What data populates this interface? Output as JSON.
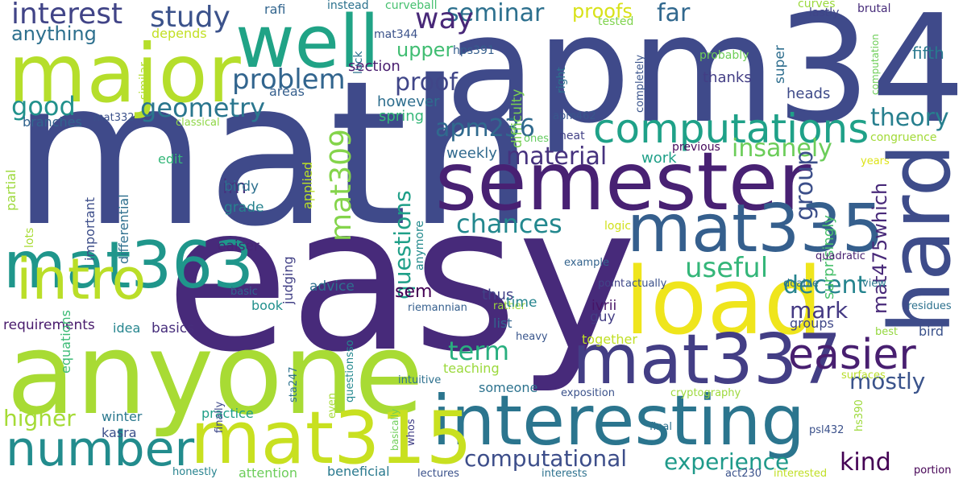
{
  "words": [
    {
      "text": "math",
      "color": "#3f4a8a"
    },
    {
      "text": "easy",
      "color": "#472a7a"
    },
    {
      "text": "apm346",
      "color": "#3f4a8a"
    },
    {
      "text": "anyone",
      "color": "#a8db34"
    },
    {
      "text": "semester",
      "color": "#482173"
    },
    {
      "text": "interesting",
      "color": "#2b758e"
    },
    {
      "text": "major",
      "color": "#b5de2b"
    },
    {
      "text": "well",
      "color": "#20a386"
    },
    {
      "text": "hard",
      "color": "#3e4c8a"
    },
    {
      "text": "load",
      "color": "#efe51c"
    },
    {
      "text": "mat335",
      "color": "#355f8d"
    },
    {
      "text": "mat363",
      "color": "#1f968b"
    },
    {
      "text": "mat337",
      "color": "#433e85"
    },
    {
      "text": "mat315",
      "color": "#c8e020"
    },
    {
      "text": "intro",
      "color": "#bade28"
    },
    {
      "text": "number",
      "color": "#228c8d"
    },
    {
      "text": "computations",
      "color": "#1fa188"
    },
    {
      "text": "easier",
      "color": "#481f70"
    },
    {
      "text": "interest",
      "color": "#414487"
    },
    {
      "text": "study",
      "color": "#3b528b"
    },
    {
      "text": "problem",
      "color": "#32658e"
    },
    {
      "text": "geometry",
      "color": "#2a768e"
    },
    {
      "text": "good",
      "color": "#21918c"
    },
    {
      "text": "apm236",
      "color": "#306a8e"
    },
    {
      "text": "seminar",
      "color": "#2d708e"
    },
    {
      "text": "way",
      "color": "#482878"
    },
    {
      "text": "proofs",
      "color": "#d8e219"
    },
    {
      "text": "far",
      "color": "#31688e"
    },
    {
      "text": "proof",
      "color": "#404688"
    },
    {
      "text": "anything",
      "color": "#2d708e"
    },
    {
      "text": "upper",
      "color": "#40bd72"
    },
    {
      "text": "theory",
      "color": "#277f8e"
    },
    {
      "text": "material",
      "color": "#46327e"
    },
    {
      "text": "insanely",
      "color": "#6ccd5a"
    },
    {
      "text": "mat309",
      "color": "#84d44b"
    },
    {
      "text": "questions",
      "color": "#1f9f88"
    },
    {
      "text": "chances",
      "color": "#23888e"
    },
    {
      "text": "useful",
      "color": "#34b679"
    },
    {
      "text": "group",
      "color": "#3c4f8a"
    },
    {
      "text": "decent",
      "color": "#25848e"
    },
    {
      "text": "mark",
      "color": "#443983"
    },
    {
      "text": "mat475which",
      "color": "#482979"
    },
    {
      "text": "im",
      "color": "#46337e"
    },
    {
      "text": "term",
      "color": "#29af7f"
    },
    {
      "text": "mostly",
      "color": "#3a538b"
    },
    {
      "text": "experience",
      "color": "#1f9a8a"
    },
    {
      "text": "kind",
      "color": "#440154"
    },
    {
      "text": "computational",
      "color": "#3d4e8a"
    },
    {
      "text": "higher",
      "color": "#a5db36"
    },
    {
      "text": "sem",
      "color": "#440154"
    },
    {
      "text": "surprisingly",
      "color": "#4ac16d"
    },
    {
      "text": "section",
      "color": "#481d6f"
    },
    {
      "text": "however",
      "color": "#2e6e8e"
    },
    {
      "text": "spring",
      "color": "#35b779"
    },
    {
      "text": "difficulty",
      "color": "#7ad151"
    },
    {
      "text": "thanks",
      "color": "#433e85"
    },
    {
      "text": "heads",
      "color": "#3e4a89"
    },
    {
      "text": "super",
      "color": "#2e6e8e"
    },
    {
      "text": "fifth",
      "color": "#29798e"
    },
    {
      "text": "rafi",
      "color": "#32658e"
    },
    {
      "text": "instead",
      "color": "#2c728e"
    },
    {
      "text": "curveball",
      "color": "#46c06f"
    },
    {
      "text": "tested",
      "color": "#7fd34e"
    },
    {
      "text": "curves",
      "color": "#9bd93c"
    },
    {
      "text": "lastly",
      "color": "#404588"
    },
    {
      "text": "brutal",
      "color": "#472c7a"
    },
    {
      "text": "mat344",
      "color": "#3b528b"
    },
    {
      "text": "hps391",
      "color": "#355e8d"
    },
    {
      "text": "luck",
      "color": "#2c738e"
    },
    {
      "text": "depends",
      "color": "#c2df23"
    },
    {
      "text": "similar",
      "color": "#b2dd2d"
    },
    {
      "text": "probably",
      "color": "#6ece58"
    },
    {
      "text": "right",
      "color": "#2d718e"
    },
    {
      "text": "completely",
      "color": "#3a548c"
    },
    {
      "text": "computation",
      "color": "#6ece58"
    },
    {
      "text": "areas",
      "color": "#355f8d"
    },
    {
      "text": "branches",
      "color": "#32648e"
    },
    {
      "text": "mat332",
      "color": "#3b518b"
    },
    {
      "text": "classical",
      "color": "#8ed645"
    },
    {
      "text": "apm462",
      "color": "#39568c"
    },
    {
      "text": "neat",
      "color": "#424186"
    },
    {
      "text": "ones",
      "color": "#63cb5f"
    },
    {
      "text": "previous",
      "color": "#460a5d"
    },
    {
      "text": "congruence",
      "color": "#a2da37"
    },
    {
      "text": "weekly",
      "color": "#30698e"
    },
    {
      "text": "work",
      "color": "#1fa088"
    },
    {
      "text": "edit",
      "color": "#35b779"
    },
    {
      "text": "birdy",
      "color": "#2d708e"
    },
    {
      "text": "grade",
      "color": "#26828e"
    },
    {
      "text": "eaiser",
      "color": "#482475"
    },
    {
      "text": "applied",
      "color": "#bade28"
    },
    {
      "text": "differential",
      "color": "#2e6f8e"
    },
    {
      "text": "important",
      "color": "#3d4e8a"
    },
    {
      "text": "partial",
      "color": "#9dd93b"
    },
    {
      "text": "lots",
      "color": "#a8db34"
    },
    {
      "text": "years",
      "color": "#dde318"
    },
    {
      "text": "logic",
      "color": "#d0e11c"
    },
    {
      "text": "example",
      "color": "#33638d"
    },
    {
      "text": "quadratic",
      "color": "#482071"
    },
    {
      "text": "anymore",
      "color": "#238a8d"
    },
    {
      "text": "actually",
      "color": "#3b518b"
    },
    {
      "text": "doable",
      "color": "#2d718e"
    },
    {
      "text": "basic",
      "color": "#32648e"
    },
    {
      "text": "advice",
      "color": "#2d708e"
    },
    {
      "text": "judging",
      "color": "#424186"
    },
    {
      "text": "thus",
      "color": "#414287"
    },
    {
      "text": "rather",
      "color": "#9dd93b"
    },
    {
      "text": "point",
      "color": "#414487"
    },
    {
      "text": "view",
      "color": "#2a788e"
    },
    {
      "text": "riemannian",
      "color": "#355f8d"
    },
    {
      "text": "time",
      "color": "#25848e"
    },
    {
      "text": "ivrii",
      "color": "#471365"
    },
    {
      "text": "residues",
      "color": "#2d718e"
    },
    {
      "text": "requirements",
      "color": "#481a6c"
    },
    {
      "text": "idea",
      "color": "#25858e"
    },
    {
      "text": "basics",
      "color": "#472e7c"
    },
    {
      "text": "book",
      "color": "#21908d"
    },
    {
      "text": "list",
      "color": "#32648e"
    },
    {
      "text": "guy",
      "color": "#433d84"
    },
    {
      "text": "groups",
      "color": "#3f4788"
    },
    {
      "text": "bird",
      "color": "#3b528b"
    },
    {
      "text": "best",
      "color": "#95d840"
    },
    {
      "text": "heavy",
      "color": "#39568c"
    },
    {
      "text": "together",
      "color": "#c0df25"
    },
    {
      "text": "teaching",
      "color": "#9bd93c"
    },
    {
      "text": "equations",
      "color": "#3cbb75"
    },
    {
      "text": "intuitive",
      "color": "#2d708e"
    },
    {
      "text": "someone",
      "color": "#2c728e"
    },
    {
      "text": "winter",
      "color": "#2a788e"
    },
    {
      "text": "kasra",
      "color": "#3c508b"
    },
    {
      "text": "practice",
      "color": "#1f9f88"
    },
    {
      "text": "sta247",
      "color": "#2c718e"
    },
    {
      "text": "questionsso",
      "color": "#23888e"
    },
    {
      "text": "finally",
      "color": "#3e4989"
    },
    {
      "text": "even",
      "color": "#a5db36"
    },
    {
      "text": "surfaces",
      "color": "#b8de29"
    },
    {
      "text": "exposition",
      "color": "#3b528b"
    },
    {
      "text": "cryptography",
      "color": "#9dd93b"
    },
    {
      "text": "hs390",
      "color": "#9dd93b"
    },
    {
      "text": "whos",
      "color": "#424086"
    },
    {
      "text": "final",
      "color": "#2d718e"
    },
    {
      "text": "psl432",
      "color": "#3b518b"
    },
    {
      "text": "basically",
      "color": "#6ece58"
    },
    {
      "text": "honestly",
      "color": "#26828e"
    },
    {
      "text": "attention",
      "color": "#6ccd5a"
    },
    {
      "text": "beneficial",
      "color": "#29798e"
    },
    {
      "text": "lectures",
      "color": "#3b528b"
    },
    {
      "text": "interests",
      "color": "#2d718e"
    },
    {
      "text": "act230",
      "color": "#3b528b"
    },
    {
      "text": "interested",
      "color": "#c0df25"
    },
    {
      "text": "portion",
      "color": "#440154"
    }
  ]
}
